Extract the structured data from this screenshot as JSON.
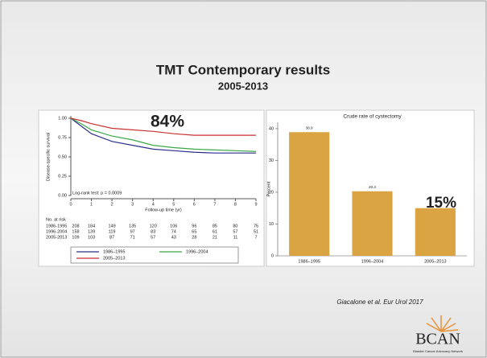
{
  "slide": {
    "title": "TMT Contemporary results",
    "subtitle": "2005-2013",
    "citation": "Giacalone et al. Eur Urol 2017",
    "logo": "BCAN",
    "logo_caption": "Bladder Cancer Advocacy Network"
  },
  "chart_data": [
    {
      "type": "line",
      "y_label": "Disease-specific survival",
      "x_label": "Follow-up time (yr)",
      "annotations": [
        "84%",
        "Log-rank test: p = 0.0009"
      ],
      "x": [
        0,
        0.5,
        1,
        2,
        3,
        4,
        5,
        6,
        7,
        8,
        9
      ],
      "series": [
        {
          "name": "1986–1995",
          "color": "#2b2f8a",
          "values": [
            1.0,
            0.9,
            0.8,
            0.7,
            0.65,
            0.6,
            0.58,
            0.56,
            0.55,
            0.55,
            0.55
          ]
        },
        {
          "name": "1996–2004",
          "color": "#3aa845",
          "values": [
            1.0,
            0.93,
            0.85,
            0.77,
            0.72,
            0.65,
            0.62,
            0.6,
            0.59,
            0.58,
            0.57
          ]
        },
        {
          "name": "2005–2013",
          "color": "#c8322f",
          "values": [
            1.0,
            0.97,
            0.93,
            0.87,
            0.85,
            0.83,
            0.8,
            0.78,
            0.78,
            0.78,
            0.78
          ]
        }
      ],
      "xlim": [
        0,
        9
      ],
      "xticks": [
        0,
        1,
        2,
        3,
        4,
        5,
        6,
        7,
        8,
        9
      ],
      "ylim": [
        0,
        1
      ],
      "yticks": [
        {
          "value": 0,
          "label": "0.00"
        },
        {
          "value": 0.25,
          "label": "0.25"
        },
        {
          "value": 0.5,
          "label": "0.50"
        },
        {
          "value": 0.75,
          "label": "0.75"
        },
        {
          "value": 1,
          "label": "1.00"
        }
      ],
      "legend": "bottom",
      "risk_table": {
        "title": "No. at risk",
        "rows": [
          {
            "name": "1986-1995",
            "values": [
              208,
              184,
              149,
              135,
              120,
              106,
              96,
              85,
              80,
              75
            ]
          },
          {
            "name": "1996-2004",
            "values": [
              158,
              139,
              119,
              97,
              83,
              74,
              65,
              61,
              57,
              51
            ]
          },
          {
            "name": "2005-2013",
            "values": [
              109,
              103,
              87,
              71,
              57,
              43,
              28,
              21,
              11,
              7
            ]
          }
        ]
      }
    },
    {
      "type": "bar",
      "title": "Crude rate of cystectomy",
      "y_label": "Percent",
      "annotations": [
        "15%"
      ],
      "categories": [
        "1986–1995",
        "1996–2004",
        "2005–2013"
      ],
      "values": [
        38.9,
        20.3,
        15
      ],
      "value_labels": [
        "38.9",
        "20.3",
        null
      ],
      "color": "#dba443",
      "ylim": [
        0,
        42
      ],
      "yticks": [
        0,
        10,
        20,
        30,
        40
      ],
      "grid": false
    }
  ]
}
